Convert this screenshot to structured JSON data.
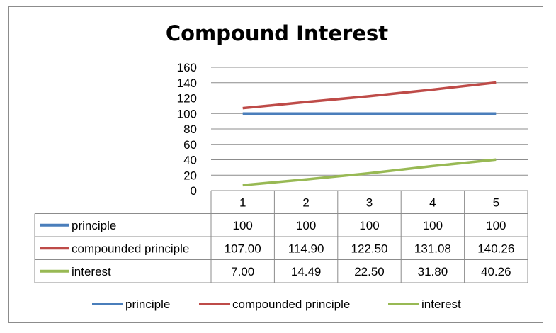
{
  "chart_data": {
    "type": "line",
    "title": "Compound Interest",
    "categories": [
      "1",
      "2",
      "3",
      "4",
      "5"
    ],
    "ylim": [
      0,
      160
    ],
    "yticks": [
      "0",
      "20",
      "40",
      "60",
      "80",
      "100",
      "120",
      "140",
      "160"
    ],
    "grid": true,
    "legend_position": "bottom",
    "data_table": true,
    "series": [
      {
        "name": "principle",
        "color": "#4a7ebb",
        "values": [
          100,
          100,
          100,
          100,
          100
        ],
        "labels": [
          "100",
          "100",
          "100",
          "100",
          "100"
        ]
      },
      {
        "name": "compounded principle",
        "color": "#be4b48",
        "values": [
          107.0,
          114.9,
          122.5,
          131.08,
          140.26
        ],
        "labels": [
          "107.00",
          "114.90",
          "122.50",
          "131.08",
          "140.26"
        ]
      },
      {
        "name": "interest",
        "color": "#98b954",
        "values": [
          7.0,
          14.49,
          22.5,
          31.8,
          40.26
        ],
        "labels": [
          "7.00",
          "14.49",
          "22.50",
          "31.80",
          "40.26"
        ]
      }
    ]
  }
}
